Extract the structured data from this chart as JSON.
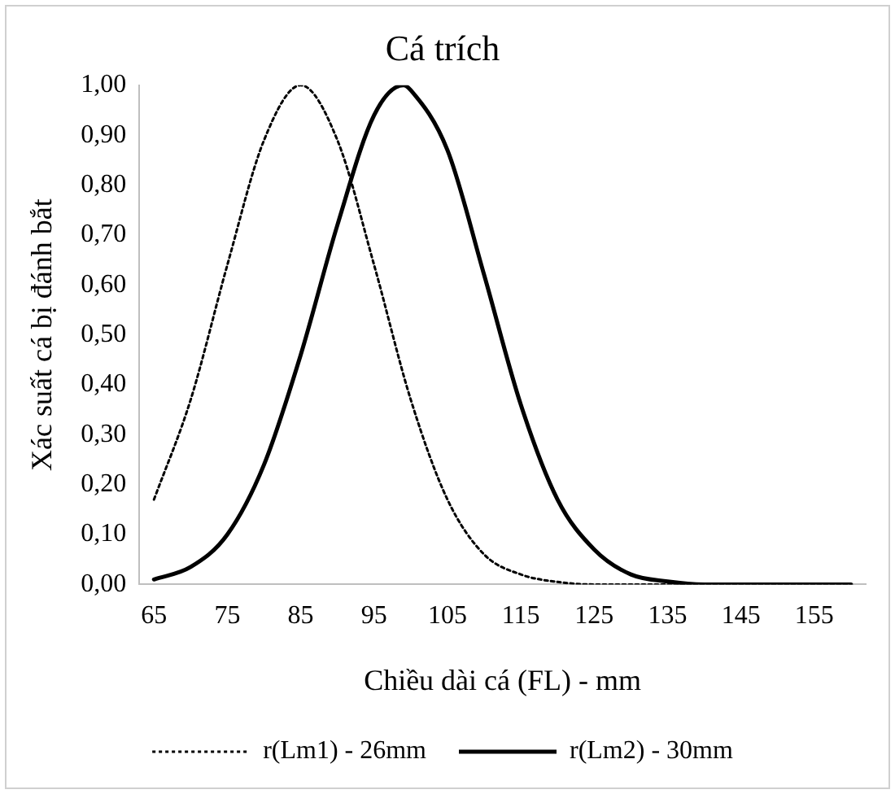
{
  "chart_data": {
    "type": "line",
    "title": "Cá trích",
    "xlabel": "Chiều dài cá (FL) - mm",
    "ylabel": "Xác suất cá bị đánh bắt",
    "xlim": [
      63,
      162
    ],
    "xticks": [
      65,
      75,
      85,
      95,
      105,
      115,
      125,
      135,
      145,
      155
    ],
    "ylim": [
      0,
      1
    ],
    "yticks": [
      {
        "value": 0,
        "label": "0,00"
      },
      {
        "value": 0.1,
        "label": "0,10"
      },
      {
        "value": 0.2,
        "label": "0,20"
      },
      {
        "value": 0.3,
        "label": "0,30"
      },
      {
        "value": 0.4,
        "label": "0,40"
      },
      {
        "value": 0.5,
        "label": "0,50"
      },
      {
        "value": 0.6,
        "label": "0,60"
      },
      {
        "value": 0.7,
        "label": "0,70"
      },
      {
        "value": 0.8,
        "label": "0,80"
      },
      {
        "value": 0.9,
        "label": "0,90"
      },
      {
        "value": 1,
        "label": "1,00"
      }
    ],
    "grid": false,
    "legend": "bottom",
    "marker": "none",
    "series": [
      {
        "name": "r(Lm1) - 26mm",
        "color": "#000000",
        "line_style": "dotted",
        "x": [
          65,
          70,
          75,
          80,
          85,
          90,
          95,
          100,
          105,
          110,
          115,
          120,
          125,
          130,
          140,
          150,
          160
        ],
        "values": [
          0.17,
          0.37,
          0.64,
          0.89,
          1.0,
          0.89,
          0.64,
          0.37,
          0.17,
          0.06,
          0.02,
          0.005,
          0,
          0,
          0,
          0,
          0
        ]
      },
      {
        "name": "r(Lm2) - 30mm",
        "color": "#000000",
        "line_style": "solid",
        "x": [
          65,
          70,
          75,
          80,
          85,
          90,
          95,
          99,
          100,
          105,
          110,
          115,
          120,
          125,
          130,
          135,
          140,
          150,
          160
        ],
        "values": [
          0.01,
          0.035,
          0.1,
          0.24,
          0.46,
          0.72,
          0.94,
          1.0,
          0.99,
          0.87,
          0.62,
          0.36,
          0.17,
          0.07,
          0.02,
          0.006,
          0,
          0,
          0
        ]
      }
    ]
  }
}
